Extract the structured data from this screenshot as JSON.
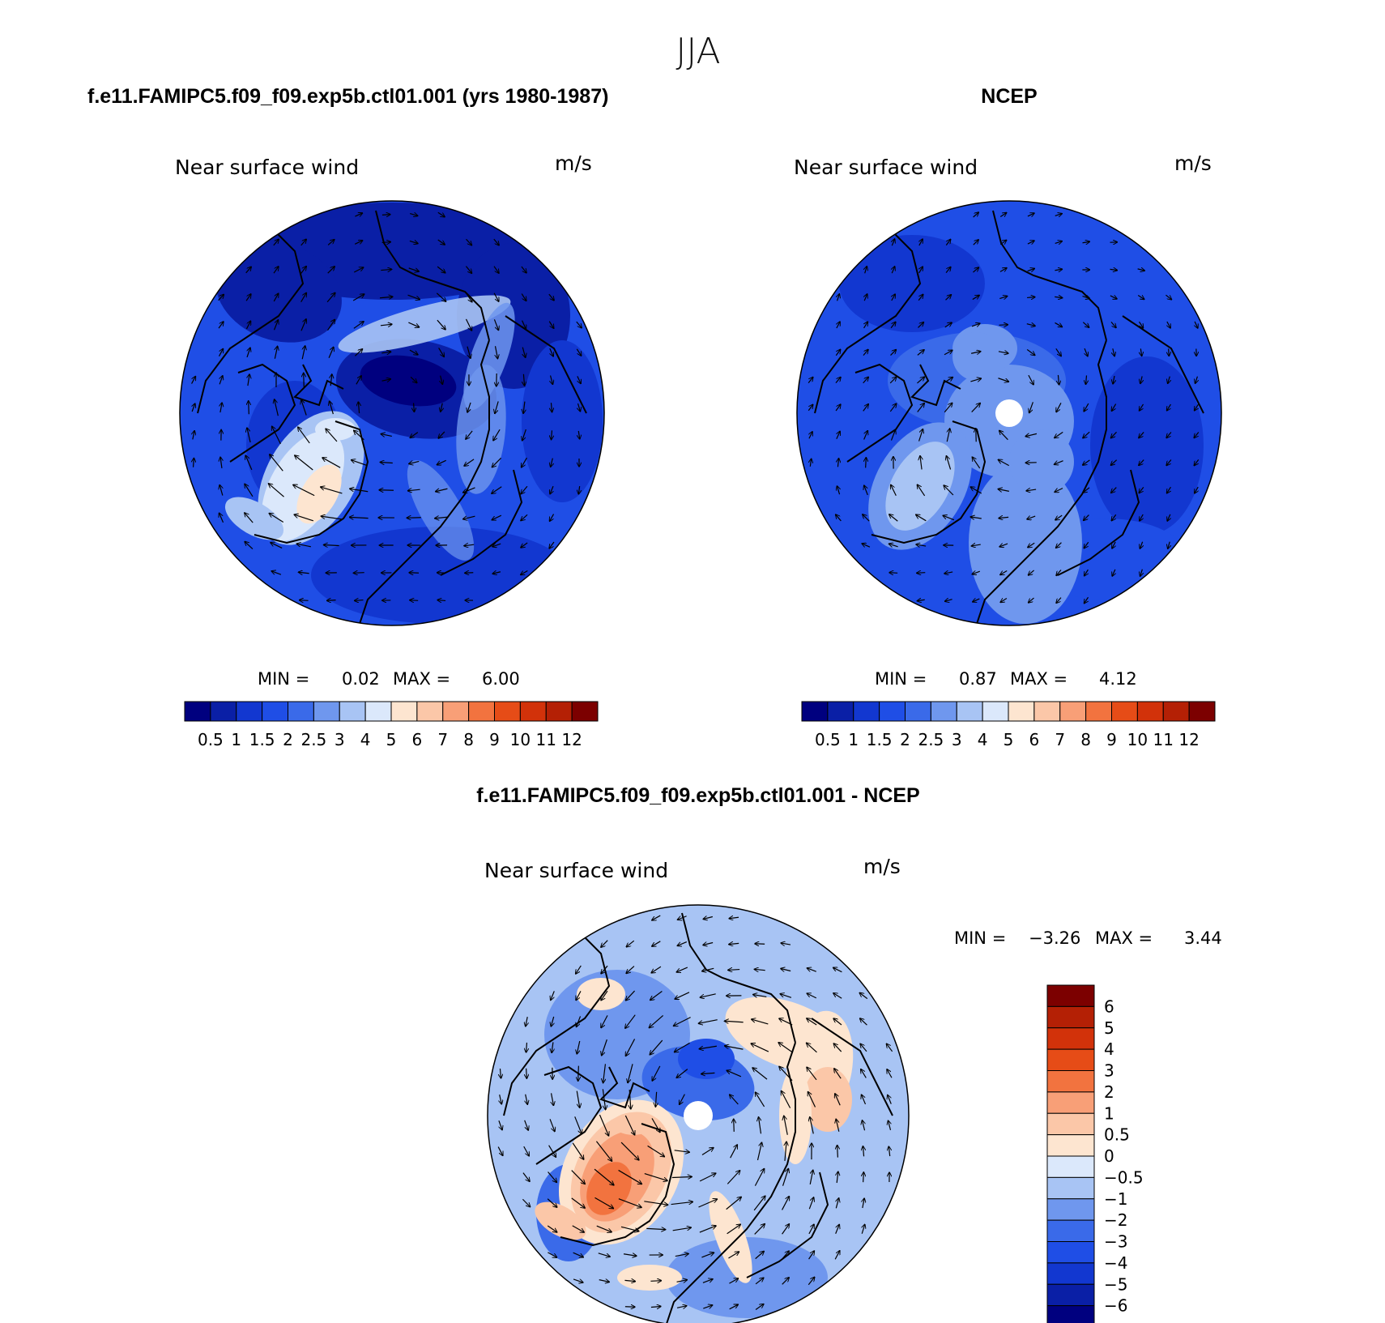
{
  "page_title": "JJA",
  "panels": [
    {
      "title": "f.e11.FAMIPC5.f09_f09.exp5b.ctl01.001 (yrs 1980-1987)",
      "subtitle": "Near surface wind",
      "units": "m/s",
      "min_label": "MIN =",
      "min_value": "0.02",
      "max_label": "MAX =",
      "max_value": "6.00"
    },
    {
      "title": "NCEP",
      "subtitle": "Near surface wind",
      "units": "m/s",
      "min_label": "MIN =",
      "min_value": "0.87",
      "max_label": "MAX =",
      "max_value": "4.12"
    },
    {
      "title": "f.e11.FAMIPC5.f09_f09.exp5b.ctl01.001 - NCEP",
      "subtitle": "Near surface wind",
      "units": "m/s",
      "min_label": "MIN =",
      "min_value": "−3.26",
      "max_label": "MAX =",
      "max_value": "3.44"
    }
  ],
  "chart_data": [
    {
      "type": "heatmap",
      "projection": "north polar stereographic",
      "season": "JJA",
      "variable": "Near surface wind",
      "units": "m/s",
      "min": 0.02,
      "max": 6.0,
      "colorbar_labels": [
        "0.5",
        "1",
        "1.5",
        "2",
        "2.5",
        "3",
        "4",
        "5",
        "6",
        "7",
        "8",
        "9",
        "10",
        "11",
        "12"
      ],
      "colorbar_colors": [
        "#00007f",
        "#0a1fa6",
        "#1237d0",
        "#1f4ee6",
        "#3a6ae9",
        "#6f97ee",
        "#a8c4f4",
        "#dbe8fb",
        "#fde5d0",
        "#fbc7a8",
        "#f89f77",
        "#f2733f",
        "#e64c17",
        "#d2320a",
        "#b42005",
        "#7c0000"
      ],
      "overlay": "wind vectors"
    },
    {
      "type": "heatmap",
      "projection": "north polar stereographic",
      "season": "JJA",
      "variable": "Near surface wind",
      "units": "m/s",
      "min": 0.87,
      "max": 4.12,
      "colorbar_labels": [
        "0.5",
        "1",
        "1.5",
        "2",
        "2.5",
        "3",
        "4",
        "5",
        "6",
        "7",
        "8",
        "9",
        "10",
        "11",
        "12"
      ],
      "colorbar_colors": [
        "#00007f",
        "#0a1fa6",
        "#1237d0",
        "#1f4ee6",
        "#3a6ae9",
        "#6f97ee",
        "#a8c4f4",
        "#dbe8fb",
        "#fde5d0",
        "#fbc7a8",
        "#f89f77",
        "#f2733f",
        "#e64c17",
        "#d2320a",
        "#b42005",
        "#7c0000"
      ],
      "overlay": "wind vectors"
    },
    {
      "type": "heatmap",
      "projection": "north polar stereographic",
      "season": "JJA",
      "variable": "Near surface wind difference",
      "units": "m/s",
      "min": -3.26,
      "max": 3.44,
      "colorbar_labels": [
        "6",
        "5",
        "4",
        "3",
        "2",
        "1",
        "0.5",
        "0",
        "−0.5",
        "−1",
        "−2",
        "−3",
        "−4",
        "−5",
        "−6"
      ],
      "colorbar_colors": [
        "#7c0000",
        "#b42005",
        "#d2320a",
        "#e64c17",
        "#f2733f",
        "#f89f77",
        "#fbc7a8",
        "#fde5d0",
        "#dbe8fb",
        "#a8c4f4",
        "#6f97ee",
        "#3a6ae9",
        "#1f4ee6",
        "#1237d0",
        "#0a1fa6",
        "#00007f"
      ],
      "overlay": "wind vectors"
    }
  ]
}
